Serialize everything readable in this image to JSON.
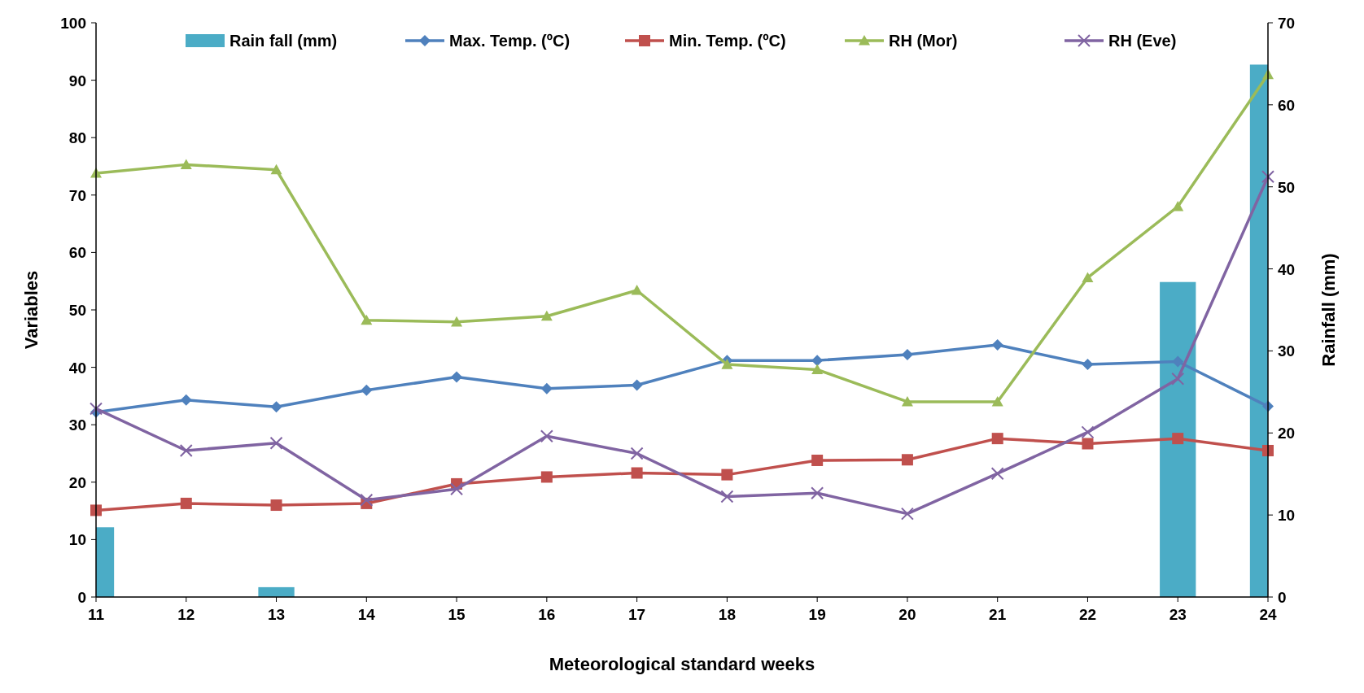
{
  "chart_data": {
    "type": "line",
    "xlabel": "Meteorological standard weeks",
    "ylabel": "Variables",
    "y2label": "Rainfall (mm)",
    "x": [
      11,
      12,
      13,
      14,
      15,
      16,
      17,
      18,
      19,
      20,
      21,
      22,
      23,
      24
    ],
    "xlim": [
      11,
      24
    ],
    "xticks": [
      11,
      12,
      13,
      14,
      15,
      16,
      17,
      18,
      19,
      20,
      21,
      22,
      23,
      24
    ],
    "ylim": [
      0,
      100
    ],
    "yticks": [
      0,
      10,
      20,
      30,
      40,
      50,
      60,
      70,
      80,
      90,
      100
    ],
    "y2lim": [
      0,
      70
    ],
    "y2ticks": [
      0,
      10,
      20,
      30,
      40,
      50,
      60,
      70
    ],
    "legend": "top",
    "grid": false,
    "series": [
      {
        "name": "Rain fall (mm)",
        "type": "bar",
        "axis": "y2",
        "color": "#4bacc6",
        "values": [
          8.5,
          0,
          1.2,
          0,
          0,
          0,
          0,
          0,
          0,
          0,
          0,
          0,
          38.4,
          64.9
        ]
      },
      {
        "name": "Max. Temp. (ºC)",
        "marker": "diamond",
        "color": "#4f81bd",
        "values": [
          32.2,
          34.3,
          33.1,
          36,
          38.3,
          36.3,
          36.9,
          41.2,
          41.2,
          42.2,
          43.9,
          40.5,
          41,
          33.2
        ]
      },
      {
        "name": "Min. Temp. (ºC)",
        "marker": "square",
        "color": "#c0504d",
        "values": [
          15.1,
          16.3,
          16,
          16.3,
          19.7,
          20.9,
          21.6,
          21.3,
          23.8,
          23.9,
          27.6,
          26.7,
          27.6,
          25.5
        ]
      },
      {
        "name": "RH (Mor)",
        "marker": "triangle",
        "color": "#9bbb59",
        "values": [
          73.8,
          75.3,
          74.4,
          48.2,
          47.9,
          48.9,
          53.4,
          40.5,
          39.6,
          34,
          34,
          55.6,
          68,
          91
        ]
      },
      {
        "name": "RH (Eve)",
        "marker": "cross",
        "color": "#8064a2",
        "values": [
          32.8,
          25.5,
          26.8,
          16.9,
          18.8,
          28,
          25,
          17.5,
          18.1,
          14.5,
          21.5,
          28.7,
          38,
          73.2
        ]
      }
    ]
  }
}
